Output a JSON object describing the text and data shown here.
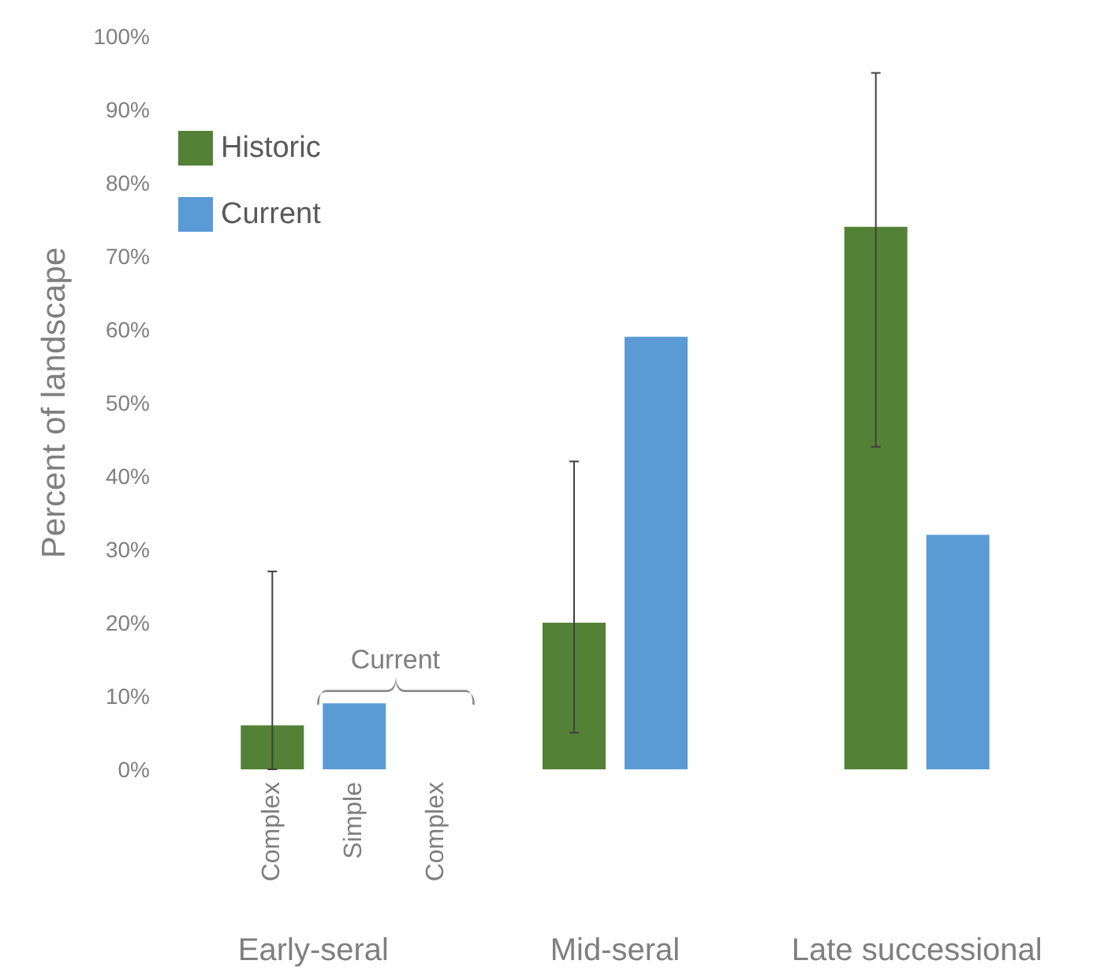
{
  "chart_data": {
    "type": "bar",
    "ylabel": "Percent of landscape",
    "categories": [
      "Early-seral",
      "Mid-seral",
      "Late successional"
    ],
    "series": [
      {
        "name": "Historic",
        "color": "#538135",
        "values": [
          6,
          20,
          74
        ],
        "errors": [
          [
            0,
            27
          ],
          [
            5,
            42
          ],
          [
            44,
            95
          ]
        ]
      },
      {
        "name": "Current",
        "color": "#5b9bd5",
        "values": [
          9,
          59,
          32
        ]
      }
    ],
    "ylim": [
      0,
      100
    ],
    "yticks": [
      {
        "value": 0,
        "label": "0%"
      },
      {
        "value": 10,
        "label": "10%"
      },
      {
        "value": 20,
        "label": "20%"
      },
      {
        "value": 30,
        "label": "30%"
      },
      {
        "value": 40,
        "label": "40%"
      },
      {
        "value": 50,
        "label": "50%"
      },
      {
        "value": 60,
        "label": "60%"
      },
      {
        "value": 70,
        "label": "70%"
      },
      {
        "value": 80,
        "label": "80%"
      },
      {
        "value": 90,
        "label": "90%"
      },
      {
        "value": 100,
        "label": "100%"
      }
    ],
    "annotations": [
      "Complex",
      "Simple",
      "Complex",
      "Current"
    ],
    "grid": false,
    "legend": "top left"
  }
}
